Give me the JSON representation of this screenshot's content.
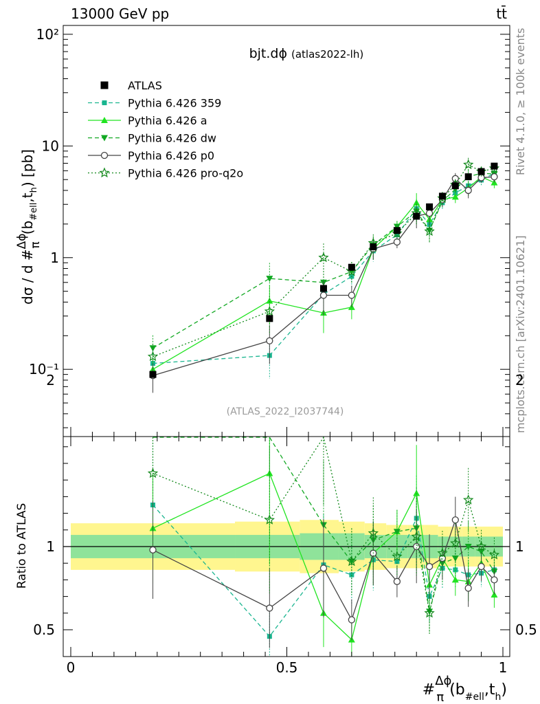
{
  "header": {
    "energy": "13000 GeV pp",
    "process": "tt̄"
  },
  "side_text": {
    "rivet": "Rivet 4.1.0, ≥ 100k events",
    "mcplots": "mcplots.cern.ch [arXiv:2401.10621]"
  },
  "chart_data": {
    "type": "scatter",
    "title": "bjt.dϕ",
    "subtitle": "(atlas2022-lh)",
    "watermark": "(ATLAS_2022_I2037744)",
    "xlabel": "#Δϕ/π(b#ell,th)",
    "ylabel": "dσ / d #Δϕ/π(b#ell,th) [pb]",
    "ratio_ylabel": "Ratio to ATLAS",
    "yscale": "log",
    "ylim": [
      0.025,
      120
    ],
    "xlim": [
      -0.02,
      1.01
    ],
    "ratio_ylim": [
      0.4,
      2.4
    ],
    "x_ticks": [
      "0",
      "0.5",
      "1"
    ],
    "y_ticks": [
      "10⁻¹",
      "1",
      "10",
      "10²"
    ],
    "ratio_ticks": [
      "0.5",
      "1",
      "2"
    ],
    "x": [
      0.19,
      0.46,
      0.585,
      0.65,
      0.7,
      0.755,
      0.8,
      0.83,
      0.86,
      0.89,
      0.92,
      0.95,
      0.98
    ],
    "series": [
      {
        "name": "ATLAS",
        "color": "#000000",
        "style": "data",
        "values": [
          0.09,
          0.285,
          0.53,
          0.82,
          1.25,
          1.75,
          2.35,
          2.85,
          3.55,
          4.4,
          5.3,
          5.9,
          6.6
        ]
      },
      {
        "name": "Pythia 6.426 359",
        "color": "#19b58f",
        "style": "dashed-square",
        "values": [
          0.113,
          0.133,
          0.47,
          0.68,
          1.15,
          1.6,
          2.75,
          1.98,
          3.1,
          3.8,
          4.4,
          4.95,
          5.7
        ]
      },
      {
        "name": "Pythia 6.426 a",
        "color": "#20e420",
        "style": "solid-triangle-up",
        "values": [
          0.1,
          0.41,
          0.32,
          0.36,
          1.2,
          1.9,
          3.1,
          2.2,
          3.3,
          3.5,
          4.2,
          5.3,
          4.7
        ]
      },
      {
        "name": "Pythia 6.426 dw",
        "color": "#11a822",
        "style": "dashed-triangle-down",
        "values": [
          0.155,
          0.65,
          0.6,
          0.75,
          1.3,
          1.9,
          2.6,
          1.75,
          3.2,
          4.1,
          5.3,
          5.7,
          5.6
        ]
      },
      {
        "name": "Pythia 6.426 p0",
        "color": "#444444",
        "style": "solid-open-circle",
        "values": [
          0.088,
          0.18,
          0.46,
          0.46,
          1.2,
          1.38,
          2.35,
          2.5,
          3.3,
          5.1,
          4.0,
          5.2,
          5.3
        ]
      },
      {
        "name": "Pythia 6.426 pro-q2o",
        "color": "#11881a",
        "style": "dotted-open-star",
        "values": [
          0.13,
          0.33,
          1.0,
          0.75,
          1.35,
          1.65,
          2.5,
          1.72,
          3.4,
          4.5,
          6.8,
          5.9,
          6.3
        ]
      }
    ],
    "ratios": [
      {
        "name": "Pythia 6.426 359",
        "values": [
          1.25,
          0.46,
          0.89,
          0.83,
          0.92,
          0.91,
          1.17,
          0.7,
          0.87,
          0.86,
          0.83,
          0.84,
          0.86
        ]
      },
      {
        "name": "Pythia 6.426 a",
        "values": [
          1.11,
          1.44,
          0.6,
          0.44,
          0.96,
          1.09,
          1.32,
          0.77,
          0.93,
          0.8,
          0.79,
          0.9,
          0.71
        ]
      },
      {
        "name": "Pythia 6.426 dw",
        "values": [
          1.72,
          2.28,
          1.13,
          0.91,
          1.04,
          1.09,
          1.11,
          0.61,
          0.9,
          0.93,
          1.0,
          0.97,
          0.85
        ]
      },
      {
        "name": "Pythia 6.426 p0",
        "values": [
          0.98,
          0.63,
          0.87,
          0.56,
          0.96,
          0.79,
          1.0,
          0.88,
          0.93,
          1.16,
          0.75,
          0.88,
          0.8
        ]
      },
      {
        "name": "Pythia 6.426 pro-q2o",
        "values": [
          1.44,
          1.16,
          1.89,
          0.91,
          1.08,
          0.94,
          1.06,
          0.6,
          0.96,
          1.02,
          1.28,
          1.0,
          0.95
        ]
      }
    ],
    "ratio_error_fraction": [
      0.3,
      0.38,
      0.34,
      0.22,
      0.2,
      0.12,
      0.22,
      0.22,
      0.14,
      0.12,
      0.15,
      0.1,
      0.11
    ],
    "uncertainty_band": {
      "x_edges": [
        0.0,
        0.38,
        0.53,
        0.62,
        0.68,
        0.73,
        0.78,
        0.82,
        0.85,
        0.875,
        0.905,
        0.935,
        0.965,
        1.0
      ],
      "total": [
        0.14,
        0.15,
        0.16,
        0.15,
        0.14,
        0.13,
        0.13,
        0.13,
        0.12,
        0.12,
        0.12,
        0.12,
        0.12
      ],
      "stat": [
        0.07,
        0.07,
        0.08,
        0.08,
        0.07,
        0.07,
        0.07,
        0.07,
        0.06,
        0.06,
        0.06,
        0.06,
        0.06
      ]
    }
  }
}
